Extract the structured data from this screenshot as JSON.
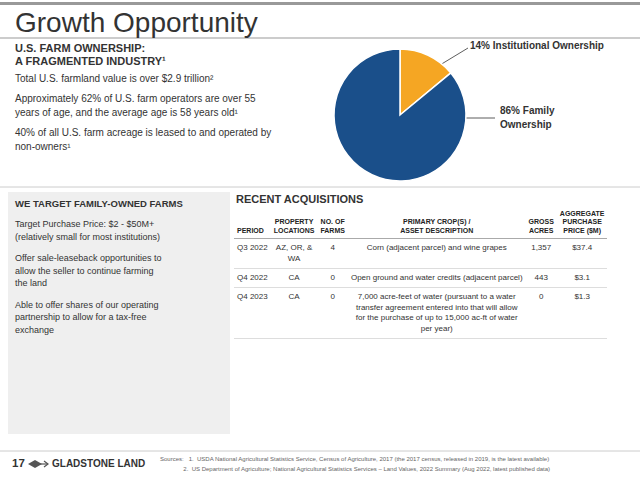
{
  "chart_data": {
    "type": "pie",
    "title": "Growth Opportunity",
    "values": [
      14,
      86
    ],
    "colors": [
      "#f5a623",
      "#1a4f8a"
    ],
    "annotations": [
      "U.S. FARM OWNERSHIP:",
      "A FRAGMENTED INDUSTRY¹",
      "Total U.S. farmland value is over $2.9 trillion²",
      "Approximately 62% of U.S. farm operators are over 55\nyears of age, and the average age is 58 years old¹",
      "40% of all U.S. farm acreage is leased to and operated by\nnon-owners¹",
      "14% Institutional Ownership",
      "86% Family\nOwnership",
      "WE TARGET FAMILY-OWNED FARMS",
      "Target Purchase Price: $2 - $50M+\n(relatively small for most institutions)",
      "Offer sale-leaseback opportunities to\nallow the seller to continue farming\nthe land",
      "Able to offer shares of our operating\npartnership to allow for a tax-free\nexchange",
      "17",
      "GLADSTONE LAND",
      "Sources:   1.  USDA National Agricultural Statistics Service, Census of Agriculture, 2017 (the 2017 census, released in 2019, is the latest available)",
      "              2.  US Department of Agriculture; National Agricultural Statistics Services – Land Values, 2022 Summary (Aug 2022, latest published data)"
    ],
    "table": {
      "title": "RECENT ACQUISITIONS",
      "columns": [
        "PERIOD",
        "PROPERTY\nLOCATIONS",
        "NO. OF\nFARMS",
        "PRIMARY CROP(S) /\nASSET DESCRIPTION",
        "GROSS\nACRES",
        "AGGREGATE\nPURCHASE\nPRICE ($M)"
      ],
      "rows": [
        [
          "Q3 2022",
          "AZ, OR, &\nWA",
          "4",
          "Corn (adjacent parcel) and wine grapes",
          "1,357",
          "$37.4"
        ],
        [
          "Q4 2022",
          "CA",
          "0",
          "Open ground and water credits (adjacent parcel)",
          "443",
          "$3.1"
        ],
        [
          "Q4 2023",
          "CA",
          "0",
          "7,000 acre-feet of water (pursuant to a water\ntransfer agreement entered into that will allow\nfor the purchase of up to 15,000 ac-ft of water\nper year)",
          "0",
          "$1.3"
        ]
      ]
    }
  }
}
